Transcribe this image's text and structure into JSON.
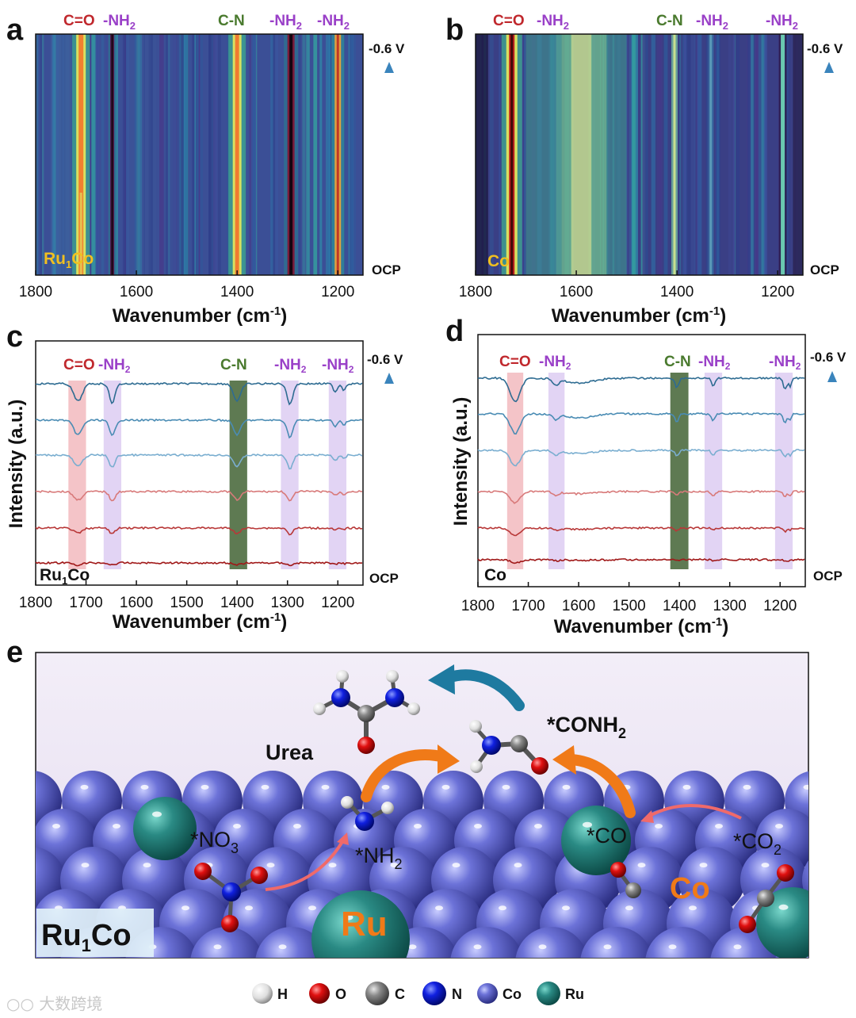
{
  "panels": {
    "a": {
      "letter": "a",
      "sample": "Ru",
      "sample_sub": "1",
      "sample_tail": "Co"
    },
    "b": {
      "letter": "b",
      "sample": "Co"
    },
    "c": {
      "letter": "c",
      "sample": "Ru",
      "sample_sub": "1",
      "sample_tail": "Co"
    },
    "d": {
      "letter": "d",
      "sample": "Co"
    },
    "e": {
      "letter": "e"
    }
  },
  "peaks": {
    "co": "C=O",
    "nh2": "-NH",
    "nh2_sub": "2",
    "cn": "C-N"
  },
  "axis": {
    "x_title": "Wavenumber (cm",
    "x_sup": "-1",
    "x_close": ")",
    "y_title": "Intensity (a.u.)",
    "top_label": "-0.6 V",
    "bottom_label": "OCP",
    "ticks_ab": [
      "1800",
      "1600",
      "1400",
      "1200"
    ],
    "ticks_cd": [
      "1800",
      "1700",
      "1600",
      "1500",
      "1400",
      "1300",
      "1200"
    ]
  },
  "scene": {
    "urea": "Urea",
    "conh2": "*CONH",
    "conh2_sub": "2",
    "no3": "*NO",
    "no3_sub": "3",
    "nh2": "*NH",
    "nh2_sub": "2",
    "co": "*CO",
    "co2": "*CO",
    "co2_sub": "2",
    "ru": "Ru",
    "co_metal": "Co",
    "badge": "Ru",
    "badge_sub": "1",
    "badge_tail": "Co"
  },
  "legend": [
    "H",
    "O",
    "C",
    "N",
    "Co",
    "Ru"
  ],
  "colors": {
    "c_o": "#c0282d",
    "nh2": "#9a40c8",
    "cn": "#4a7a2e",
    "sample": "#f0c020",
    "arrow": "#4a8fc0",
    "orange": "#f07a18",
    "teal_arrow": "#1e7aa0"
  },
  "chart_data": [
    {
      "type": "heatmap",
      "panel": "a",
      "title": "Ru1Co",
      "xlabel": "Wavenumber (cm-1)",
      "xlim": [
        1800,
        1150
      ],
      "ylabel_top": "-0.6 V",
      "ylabel_bottom": "OCP",
      "bands": [
        {
          "label": "C=O",
          "x": 1710
        },
        {
          "label": "-NH2",
          "x": 1648
        },
        {
          "label": "C-N",
          "x": 1400
        },
        {
          "label": "-NH2",
          "x": 1293
        },
        {
          "label": "-NH2",
          "x": 1200
        }
      ]
    },
    {
      "type": "heatmap",
      "panel": "b",
      "title": "Co",
      "xlabel": "Wavenumber (cm-1)",
      "xlim": [
        1800,
        1150
      ],
      "ylabel_top": "-0.6 V",
      "ylabel_bottom": "OCP",
      "bands": [
        {
          "label": "C=O",
          "x": 1728
        },
        {
          "label": "-NH2",
          "x": 1640
        },
        {
          "label": "C-N",
          "x": 1405
        },
        {
          "label": "-NH2",
          "x": 1333
        },
        {
          "label": "-NH2",
          "x": 1190
        }
      ]
    },
    {
      "type": "line",
      "panel": "c",
      "title": "Ru1Co",
      "xlabel": "Wavenumber (cm-1)",
      "ylabel": "Intensity (a.u.)",
      "xlim": [
        1800,
        1150
      ],
      "series_count": 6,
      "bands": [
        {
          "label": "C=O",
          "range": [
            1735,
            1700
          ]
        },
        {
          "label": "-NH2",
          "range": [
            1665,
            1630
          ]
        },
        {
          "label": "C-N",
          "range": [
            1415,
            1380
          ]
        },
        {
          "label": "-NH2",
          "range": [
            1313,
            1278
          ]
        },
        {
          "label": "-NH2",
          "range": [
            1218,
            1183
          ]
        }
      ]
    },
    {
      "type": "line",
      "panel": "d",
      "title": "Co",
      "xlabel": "Wavenumber (cm-1)",
      "ylabel": "Intensity (a.u.)",
      "xlim": [
        1800,
        1150
      ],
      "series_count": 6,
      "bands": [
        {
          "label": "C=O",
          "range": [
            1742,
            1710
          ]
        },
        {
          "label": "-NH2",
          "range": [
            1660,
            1628
          ]
        },
        {
          "label": "C-N",
          "range": [
            1418,
            1382
          ]
        },
        {
          "label": "-NH2",
          "range": [
            1350,
            1315
          ]
        },
        {
          "label": "-NH2",
          "range": [
            1210,
            1175
          ]
        }
      ]
    }
  ]
}
